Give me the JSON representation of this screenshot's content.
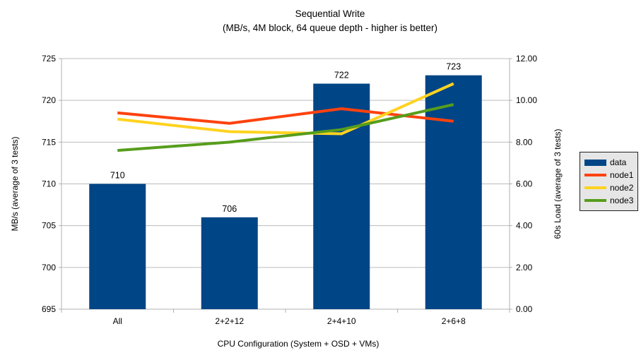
{
  "chart_data": {
    "type": "bar+line",
    "title": "Sequential Write",
    "subtitle": "(MB/s, 4M block, 64 queue depth - higher is better)",
    "categories": [
      "All",
      "2+2+12",
      "2+4+10",
      "2+6+8"
    ],
    "series": [
      {
        "name": "data",
        "type": "bar",
        "axis": "left",
        "color": "#004586",
        "values": [
          710,
          706,
          722,
          723
        ]
      },
      {
        "name": "node1",
        "type": "line",
        "axis": "right",
        "color": "#ff420e",
        "values": [
          9.4,
          8.9,
          9.6,
          9.0
        ]
      },
      {
        "name": "node2",
        "type": "line",
        "axis": "right",
        "color": "#ffd320",
        "values": [
          9.1,
          8.5,
          8.4,
          10.8
        ]
      },
      {
        "name": "node3",
        "type": "line",
        "axis": "right",
        "color": "#579d1c",
        "values": [
          7.6,
          8.0,
          8.6,
          9.8
        ]
      }
    ],
    "bar_value_labels": [
      "710",
      "706",
      "722",
      "723"
    ],
    "x_axis": {
      "label": "CPU Configuration (System + OSD + VMs)"
    },
    "left_axis": {
      "label": "MB/s (average of 3 tests)",
      "min": 695,
      "max": 725,
      "step": 5,
      "tick_labels": [
        "695",
        "700",
        "705",
        "710",
        "715",
        "720",
        "725"
      ]
    },
    "right_axis": {
      "label": "60s Load (average of 3 tests)",
      "min": 0,
      "max": 12,
      "step": 2,
      "tick_labels": [
        "0.00",
        "2.00",
        "4.00",
        "6.00",
        "8.00",
        "10.00",
        "12.00"
      ]
    },
    "legend": {
      "position": "right",
      "items": [
        "data",
        "node1",
        "node2",
        "node3"
      ]
    },
    "grid": "horizontal-only",
    "colors": {
      "grid": "#bcbcbc",
      "axis": "#b0b0b0",
      "text": "#000000",
      "legend_background": "#e6e6e6",
      "legend_border": "#1f1f1f",
      "background": "#ffffff"
    }
  }
}
